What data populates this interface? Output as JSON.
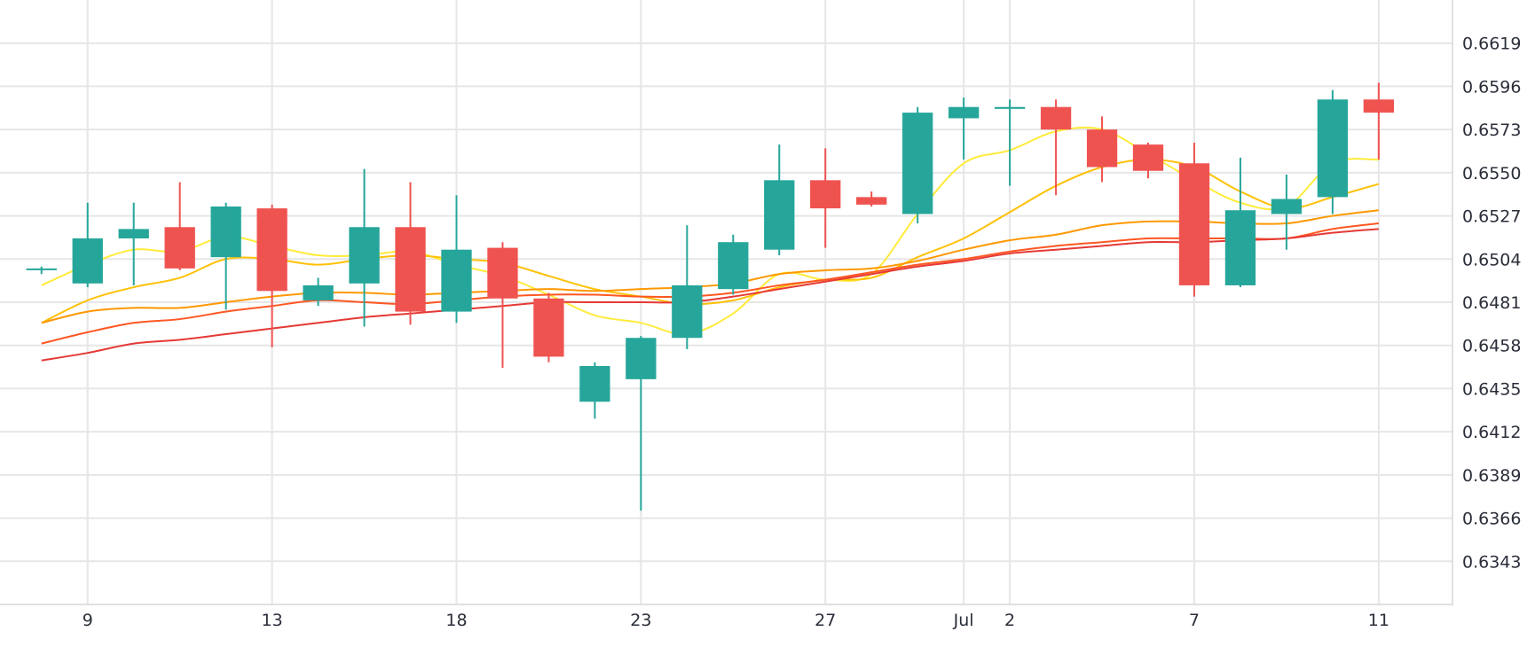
{
  "chart_data": {
    "type": "candlestick",
    "title": "",
    "xlabel": "",
    "ylabel": "",
    "grid": true,
    "ylim": [
      0.632,
      0.6642
    ],
    "y_ticks": [
      "0.6619",
      "0.6596",
      "0.6573",
      "0.6550",
      "0.6527",
      "0.6504",
      "0.6481",
      "0.6458",
      "0.6435",
      "0.6412",
      "0.6389",
      "0.6366",
      "0.6343"
    ],
    "x_ticks": [
      {
        "label": "9",
        "index": 1
      },
      {
        "label": "13",
        "index": 5
      },
      {
        "label": "18",
        "index": 9
      },
      {
        "label": "23",
        "index": 13
      },
      {
        "label": "27",
        "index": 17
      },
      {
        "label": "Jul",
        "index": 20
      },
      {
        "label": "2",
        "index": 21
      },
      {
        "label": "7",
        "index": 25
      },
      {
        "label": "11",
        "index": 29
      }
    ],
    "x_range": [
      -0.9,
      30.6
    ],
    "colors": {
      "up": "#26a69a",
      "down": "#ef5350"
    },
    "candles": [
      {
        "o": 0.6499,
        "h": 0.65,
        "l": 0.6496,
        "c": 0.6499
      },
      {
        "o": 0.6491,
        "h": 0.6534,
        "l": 0.6489,
        "c": 0.6515
      },
      {
        "o": 0.6515,
        "h": 0.6534,
        "l": 0.649,
        "c": 0.652
      },
      {
        "o": 0.6521,
        "h": 0.6545,
        "l": 0.6498,
        "c": 0.6499
      },
      {
        "o": 0.6505,
        "h": 0.6534,
        "l": 0.6477,
        "c": 0.6532
      },
      {
        "o": 0.6531,
        "h": 0.6533,
        "l": 0.6457,
        "c": 0.6487
      },
      {
        "o": 0.6482,
        "h": 0.6494,
        "l": 0.6479,
        "c": 0.649
      },
      {
        "o": 0.6491,
        "h": 0.6552,
        "l": 0.6468,
        "c": 0.6521
      },
      {
        "o": 0.6521,
        "h": 0.6545,
        "l": 0.6469,
        "c": 0.6476
      },
      {
        "o": 0.6476,
        "h": 0.6538,
        "l": 0.647,
        "c": 0.6509
      },
      {
        "o": 0.651,
        "h": 0.6513,
        "l": 0.6446,
        "c": 0.6483
      },
      {
        "o": 0.6483,
        "h": 0.6486,
        "l": 0.6449,
        "c": 0.6452
      },
      {
        "o": 0.6428,
        "h": 0.6449,
        "l": 0.6419,
        "c": 0.6447
      },
      {
        "o": 0.644,
        "h": 0.6463,
        "l": 0.637,
        "c": 0.6462
      },
      {
        "o": 0.6462,
        "h": 0.6522,
        "l": 0.6456,
        "c": 0.649
      },
      {
        "o": 0.6488,
        "h": 0.6517,
        "l": 0.6485,
        "c": 0.6513
      },
      {
        "o": 0.6509,
        "h": 0.6565,
        "l": 0.6506,
        "c": 0.6546
      },
      {
        "o": 0.6546,
        "h": 0.6563,
        "l": 0.651,
        "c": 0.6531
      },
      {
        "o": 0.6537,
        "h": 0.654,
        "l": 0.6532,
        "c": 0.6533
      },
      {
        "o": 0.6528,
        "h": 0.6585,
        "l": 0.6523,
        "c": 0.6582
      },
      {
        "o": 0.6579,
        "h": 0.659,
        "l": 0.6557,
        "c": 0.6585
      },
      {
        "o": 0.6584,
        "h": 0.6589,
        "l": 0.6543,
        "c": 0.6585
      },
      {
        "o": 0.6585,
        "h": 0.6589,
        "l": 0.6538,
        "c": 0.6573
      },
      {
        "o": 0.6573,
        "h": 0.658,
        "l": 0.6545,
        "c": 0.6553
      },
      {
        "o": 0.6565,
        "h": 0.6566,
        "l": 0.6547,
        "c": 0.6551
      },
      {
        "o": 0.6555,
        "h": 0.6566,
        "l": 0.6484,
        "c": 0.649
      },
      {
        "o": 0.649,
        "h": 0.6558,
        "l": 0.6489,
        "c": 0.653
      },
      {
        "o": 0.6528,
        "h": 0.6549,
        "l": 0.6509,
        "c": 0.6536
      },
      {
        "o": 0.6537,
        "h": 0.6594,
        "l": 0.6528,
        "c": 0.6589
      },
      {
        "o": 0.6589,
        "h": 0.6598,
        "l": 0.6557,
        "c": 0.6582
      }
    ],
    "moving_averages": [
      {
        "color": "#ffeb3b",
        "values": [
          0.649,
          0.6501,
          0.6509,
          0.6508,
          0.6516,
          0.6511,
          0.6506,
          0.6506,
          0.6508,
          0.6501,
          0.6495,
          0.6485,
          0.6474,
          0.647,
          0.6464,
          0.6475,
          0.6496,
          0.6493,
          0.6496,
          0.6528,
          0.6555,
          0.6562,
          0.6572,
          0.6573,
          0.656,
          0.6546,
          0.6534,
          0.6532,
          0.6555,
          0.6557
        ]
      },
      {
        "color": "#ffc107",
        "values": [
          0.647,
          0.6482,
          0.6489,
          0.6494,
          0.6504,
          0.6504,
          0.6501,
          0.6504,
          0.6506,
          0.6504,
          0.6502,
          0.6495,
          0.6488,
          0.6484,
          0.648,
          0.6482,
          0.6489,
          0.6493,
          0.6494,
          0.6505,
          0.6515,
          0.6529,
          0.6543,
          0.6553,
          0.6557,
          0.6553,
          0.654,
          0.6531,
          0.6537,
          0.6544
        ]
      },
      {
        "color": "#ff9800",
        "values": [
          0.647,
          0.6476,
          0.6478,
          0.6478,
          0.6481,
          0.6484,
          0.6486,
          0.6486,
          0.6485,
          0.6486,
          0.6487,
          0.6488,
          0.6487,
          0.6488,
          0.6489,
          0.6491,
          0.6496,
          0.6498,
          0.6499,
          0.6503,
          0.6509,
          0.6514,
          0.6517,
          0.6522,
          0.6524,
          0.6524,
          0.6523,
          0.6523,
          0.6527,
          0.653
        ]
      },
      {
        "color": "#ff5722",
        "values": [
          0.6459,
          0.6465,
          0.647,
          0.6472,
          0.6476,
          0.6479,
          0.6482,
          0.6481,
          0.648,
          0.6482,
          0.6484,
          0.6485,
          0.6485,
          0.6484,
          0.6484,
          0.6486,
          0.649,
          0.6493,
          0.6497,
          0.6501,
          0.6504,
          0.6508,
          0.6511,
          0.6513,
          0.6515,
          0.6515,
          0.6515,
          0.6515,
          0.652,
          0.6523
        ]
      },
      {
        "color": "#e53935",
        "values": [
          0.645,
          0.6454,
          0.6459,
          0.6461,
          0.6464,
          0.6467,
          0.647,
          0.6473,
          0.6475,
          0.6477,
          0.6479,
          0.6481,
          0.6481,
          0.6481,
          0.6481,
          0.6484,
          0.6488,
          0.6492,
          0.6496,
          0.65,
          0.6503,
          0.6507,
          0.6509,
          0.6511,
          0.6513,
          0.6513,
          0.6514,
          0.6515,
          0.6518,
          0.652
        ]
      }
    ]
  }
}
